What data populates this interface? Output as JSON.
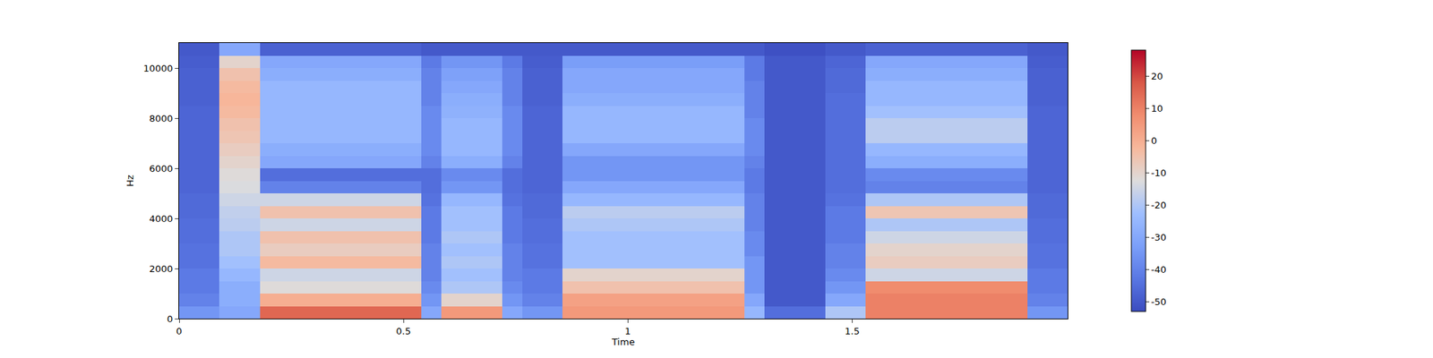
{
  "chart_data": {
    "type": "heatmap",
    "xlabel": "Time",
    "ylabel": "Hz",
    "xlim": [
      0,
      1.98
    ],
    "ylim": [
      0,
      11000
    ],
    "xticks": [
      0,
      0.5,
      1,
      1.5
    ],
    "yticks": [
      0,
      2000,
      4000,
      6000,
      8000,
      10000
    ],
    "colorbar": {
      "range": [
        -53,
        28
      ],
      "ticks": [
        -50,
        -40,
        -30,
        -20,
        -10,
        0,
        10,
        20
      ]
    },
    "x": [
      0.0225,
      0.0675,
      0.1125,
      0.1575,
      0.2025,
      0.2475,
      0.2925,
      0.3375,
      0.3825,
      0.4275,
      0.4725,
      0.5175,
      0.5625,
      0.6075,
      0.6525,
      0.6975,
      0.7425,
      0.7875,
      0.8325,
      0.8775,
      0.9225,
      0.9675,
      1.0125,
      1.0575,
      1.1025,
      1.1475,
      1.1925,
      1.2375,
      1.2825,
      1.3275,
      1.3725,
      1.4175,
      1.4625,
      1.5075,
      1.5525,
      1.5975,
      1.6425,
      1.6875,
      1.7325,
      1.7775,
      1.8225,
      1.8675,
      1.9125,
      1.9575
    ],
    "y": [
      250,
      750,
      1250,
      1750,
      2250,
      2750,
      3250,
      3750,
      4250,
      4750,
      5250,
      5750,
      6250,
      6750,
      7250,
      7750,
      8250,
      8750,
      9250,
      9750,
      10250,
      10750
    ],
    "z": [
      [
        -35,
        -35,
        -30,
        -30,
        15,
        15,
        15,
        15,
        15,
        15,
        15,
        15,
        -30,
        5,
        5,
        5,
        -30,
        -35,
        -35,
        5,
        5,
        5,
        5,
        5,
        5,
        5,
        5,
        5,
        -25,
        -45,
        -45,
        -45,
        -20,
        -20,
        10,
        10,
        10,
        10,
        10,
        10,
        10,
        10,
        -35,
        -35
      ],
      [
        -40,
        -40,
        -28,
        -28,
        0,
        0,
        0,
        0,
        0,
        0,
        0,
        0,
        -35,
        -10,
        -10,
        -10,
        -35,
        -40,
        -40,
        3,
        3,
        3,
        3,
        3,
        3,
        3,
        3,
        3,
        -30,
        -50,
        -50,
        -50,
        -30,
        -30,
        10,
        10,
        10,
        10,
        10,
        10,
        10,
        10,
        -40,
        -40
      ],
      [
        -42,
        -42,
        -28,
        -28,
        -12,
        -12,
        -12,
        -12,
        -12,
        -12,
        -12,
        -12,
        -38,
        -20,
        -20,
        -20,
        -38,
        -42,
        -42,
        -5,
        -5,
        -5,
        -5,
        -5,
        -5,
        -5,
        -5,
        -5,
        -35,
        -50,
        -50,
        -50,
        -35,
        -35,
        8,
        8,
        8,
        8,
        8,
        8,
        8,
        8,
        -42,
        -42
      ],
      [
        -42,
        -42,
        -25,
        -25,
        -15,
        -15,
        -15,
        -15,
        -15,
        -15,
        -15,
        -15,
        -40,
        -22,
        -22,
        -22,
        -40,
        -42,
        -42,
        -10,
        -10,
        -10,
        -10,
        -10,
        -10,
        -10,
        -10,
        -10,
        -35,
        -50,
        -50,
        -50,
        -38,
        -38,
        -15,
        -15,
        -15,
        -15,
        -15,
        -15,
        -15,
        -15,
        -42,
        -42
      ],
      [
        -44,
        -44,
        -22,
        -22,
        -3,
        -3,
        -3,
        -3,
        -3,
        -3,
        -3,
        -3,
        -40,
        -20,
        -20,
        -20,
        -40,
        -44,
        -44,
        -22,
        -22,
        -22,
        -22,
        -22,
        -22,
        -22,
        -22,
        -22,
        -35,
        -50,
        -50,
        -50,
        -40,
        -40,
        -8,
        -8,
        -8,
        -8,
        -8,
        -8,
        -8,
        -8,
        -44,
        -44
      ],
      [
        -44,
        -44,
        -20,
        -20,
        -8,
        -8,
        -8,
        -8,
        -8,
        -8,
        -8,
        -8,
        -40,
        -22,
        -22,
        -22,
        -40,
        -44,
        -44,
        -22,
        -22,
        -22,
        -22,
        -22,
        -22,
        -22,
        -22,
        -22,
        -38,
        -50,
        -50,
        -50,
        -40,
        -40,
        -10,
        -10,
        -10,
        -10,
        -10,
        -10,
        -10,
        -10,
        -44,
        -44
      ],
      [
        -45,
        -45,
        -20,
        -20,
        -5,
        -5,
        -5,
        -5,
        -5,
        -5,
        -5,
        -5,
        -42,
        -20,
        -20,
        -20,
        -42,
        -45,
        -45,
        -22,
        -22,
        -22,
        -22,
        -22,
        -22,
        -22,
        -22,
        -22,
        -38,
        -50,
        -50,
        -50,
        -42,
        -42,
        -15,
        -15,
        -15,
        -15,
        -15,
        -15,
        -15,
        -15,
        -45,
        -45
      ],
      [
        -45,
        -45,
        -18,
        -18,
        -15,
        -15,
        -15,
        -15,
        -15,
        -15,
        -15,
        -15,
        -42,
        -22,
        -22,
        -22,
        -42,
        -45,
        -45,
        -20,
        -20,
        -20,
        -20,
        -20,
        -20,
        -20,
        -20,
        -20,
        -40,
        -50,
        -50,
        -50,
        -42,
        -42,
        -20,
        -20,
        -20,
        -20,
        -20,
        -20,
        -20,
        -20,
        -45,
        -45
      ],
      [
        -46,
        -46,
        -17,
        -17,
        -5,
        -5,
        -5,
        -5,
        -5,
        -5,
        -5,
        -5,
        -42,
        -22,
        -22,
        -22,
        -42,
        -46,
        -46,
        -18,
        -18,
        -18,
        -18,
        -18,
        -18,
        -18,
        -18,
        -18,
        -40,
        -50,
        -50,
        -50,
        -42,
        -42,
        -6,
        -6,
        -6,
        -6,
        -6,
        -6,
        -6,
        -6,
        -46,
        -46
      ],
      [
        -46,
        -46,
        -15,
        -15,
        -15,
        -15,
        -15,
        -15,
        -15,
        -15,
        -15,
        -15,
        -44,
        -25,
        -25,
        -25,
        -44,
        -46,
        -46,
        -25,
        -25,
        -25,
        -25,
        -25,
        -25,
        -25,
        -25,
        -25,
        -40,
        -50,
        -50,
        -50,
        -44,
        -44,
        -20,
        -20,
        -20,
        -20,
        -20,
        -20,
        -20,
        -20,
        -46,
        -46
      ],
      [
        -47,
        -47,
        -13,
        -13,
        -40,
        -40,
        -40,
        -40,
        -40,
        -40,
        -40,
        -40,
        -45,
        -35,
        -35,
        -35,
        -45,
        -47,
        -47,
        -30,
        -30,
        -30,
        -30,
        -30,
        -30,
        -30,
        -30,
        -30,
        -42,
        -50,
        -50,
        -50,
        -45,
        -45,
        -40,
        -40,
        -40,
        -40,
        -40,
        -40,
        -40,
        -40,
        -47,
        -47
      ],
      [
        -47,
        -47,
        -12,
        -12,
        -45,
        -45,
        -45,
        -45,
        -45,
        -45,
        -45,
        -45,
        -45,
        -38,
        -38,
        -38,
        -45,
        -47,
        -47,
        -35,
        -35,
        -35,
        -35,
        -35,
        -35,
        -35,
        -35,
        -35,
        -42,
        -50,
        -50,
        -50,
        -45,
        -45,
        -38,
        -38,
        -38,
        -38,
        -38,
        -38,
        -38,
        -38,
        -47,
        -47
      ],
      [
        -47,
        -47,
        -10,
        -10,
        -30,
        -30,
        -30,
        -30,
        -30,
        -30,
        -30,
        -30,
        -40,
        -28,
        -28,
        -28,
        -40,
        -47,
        -47,
        -35,
        -35,
        -35,
        -35,
        -35,
        -35,
        -35,
        -35,
        -35,
        -40,
        -50,
        -50,
        -50,
        -45,
        -45,
        -28,
        -28,
        -28,
        -28,
        -28,
        -28,
        -28,
        -28,
        -47,
        -47
      ],
      [
        -47,
        -47,
        -8,
        -8,
        -28,
        -28,
        -28,
        -28,
        -28,
        -28,
        -28,
        -28,
        -38,
        -25,
        -25,
        -25,
        -38,
        -47,
        -47,
        -30,
        -30,
        -30,
        -30,
        -30,
        -30,
        -30,
        -30,
        -30,
        -38,
        -50,
        -50,
        -50,
        -45,
        -45,
        -25,
        -25,
        -25,
        -25,
        -25,
        -25,
        -25,
        -25,
        -47,
        -47
      ],
      [
        -47,
        -47,
        -6,
        -6,
        -25,
        -25,
        -25,
        -25,
        -25,
        -25,
        -25,
        -25,
        -38,
        -25,
        -25,
        -25,
        -38,
        -47,
        -47,
        -25,
        -25,
        -25,
        -25,
        -25,
        -25,
        -25,
        -25,
        -25,
        -38,
        -50,
        -50,
        -50,
        -45,
        -45,
        -18,
        -18,
        -18,
        -18,
        -18,
        -18,
        -18,
        -18,
        -47,
        -47
      ],
      [
        -47,
        -47,
        -5,
        -5,
        -25,
        -25,
        -25,
        -25,
        -25,
        -25,
        -25,
        -25,
        -38,
        -25,
        -25,
        -25,
        -38,
        -47,
        -47,
        -25,
        -25,
        -25,
        -25,
        -25,
        -25,
        -25,
        -25,
        -25,
        -38,
        -50,
        -50,
        -50,
        -45,
        -45,
        -18,
        -18,
        -18,
        -18,
        -18,
        -18,
        -18,
        -18,
        -47,
        -47
      ],
      [
        -47,
        -47,
        -3,
        -3,
        -25,
        -25,
        -25,
        -25,
        -25,
        -25,
        -25,
        -25,
        -38,
        -27,
        -27,
        -27,
        -38,
        -47,
        -47,
        -25,
        -25,
        -25,
        -25,
        -25,
        -25,
        -25,
        -25,
        -25,
        -40,
        -50,
        -50,
        -50,
        -45,
        -45,
        -22,
        -22,
        -22,
        -22,
        -22,
        -22,
        -22,
        -22,
        -47,
        -47
      ],
      [
        -48,
        -48,
        -2,
        -2,
        -25,
        -25,
        -25,
        -25,
        -25,
        -25,
        -25,
        -25,
        -40,
        -28,
        -28,
        -28,
        -40,
        -48,
        -48,
        -28,
        -28,
        -28,
        -28,
        -28,
        -28,
        -28,
        -28,
        -28,
        -40,
        -50,
        -50,
        -50,
        -45,
        -45,
        -25,
        -25,
        -25,
        -25,
        -25,
        -25,
        -25,
        -25,
        -48,
        -48
      ],
      [
        -48,
        -48,
        -3,
        -3,
        -25,
        -25,
        -25,
        -25,
        -25,
        -25,
        -25,
        -25,
        -40,
        -30,
        -30,
        -30,
        -40,
        -48,
        -48,
        -30,
        -30,
        -30,
        -30,
        -30,
        -30,
        -30,
        -30,
        -30,
        -40,
        -50,
        -50,
        -50,
        -46,
        -46,
        -25,
        -25,
        -25,
        -25,
        -25,
        -25,
        -25,
        -25,
        -48,
        -48
      ],
      [
        -48,
        -48,
        -5,
        -5,
        -28,
        -28,
        -28,
        -28,
        -28,
        -28,
        -28,
        -28,
        -40,
        -32,
        -32,
        -32,
        -40,
        -48,
        -48,
        -30,
        -30,
        -30,
        -30,
        -30,
        -30,
        -30,
        -30,
        -30,
        -42,
        -50,
        -50,
        -50,
        -46,
        -46,
        -28,
        -28,
        -28,
        -28,
        -28,
        -28,
        -28,
        -28,
        -48,
        -48
      ],
      [
        -49,
        -49,
        -10,
        -10,
        -30,
        -30,
        -30,
        -30,
        -30,
        -30,
        -30,
        -30,
        -42,
        -35,
        -35,
        -35,
        -42,
        -49,
        -49,
        -33,
        -33,
        -33,
        -33,
        -33,
        -33,
        -33,
        -33,
        -33,
        -42,
        -50,
        -50,
        -50,
        -47,
        -47,
        -30,
        -30,
        -30,
        -30,
        -30,
        -30,
        -30,
        -30,
        -49,
        -49
      ],
      [
        -50,
        -50,
        -30,
        -30,
        -48,
        -48,
        -48,
        -48,
        -48,
        -48,
        -48,
        -48,
        -50,
        -50,
        -50,
        -50,
        -50,
        -50,
        -50,
        -50,
        -50,
        -50,
        -50,
        -50,
        -50,
        -50,
        -50,
        -50,
        -50,
        -52,
        -52,
        -52,
        -50,
        -50,
        -48,
        -48,
        -48,
        -48,
        -48,
        -48,
        -48,
        -48,
        -50,
        -50
      ]
    ]
  }
}
